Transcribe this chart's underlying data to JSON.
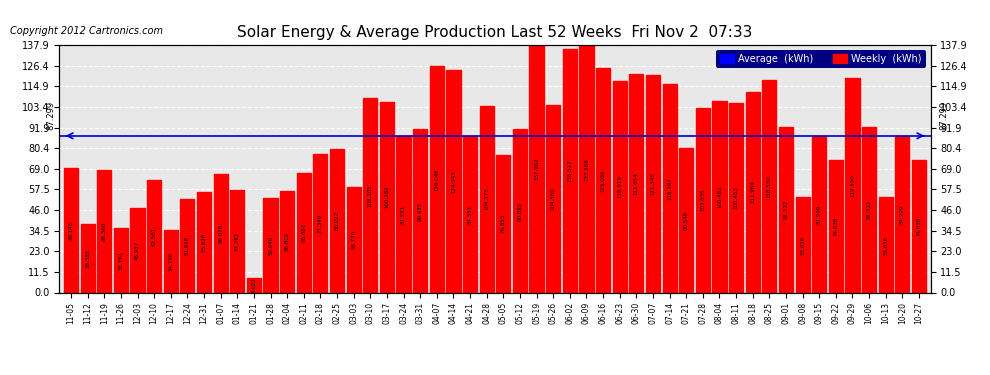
{
  "title": "Solar Energy & Average Production Last 52 Weeks  Fri Nov 2  07:33",
  "copyright": "Copyright 2012 Cartronics.com",
  "average_value": 87.299,
  "bar_color": "#ff0000",
  "average_line_color": "#0000cc",
  "background_color": "#ffffff",
  "plot_bg_color": "#e8e8e8",
  "grid_color": "#ffffff",
  "yticks": [
    0.0,
    11.5,
    23.0,
    34.5,
    46.0,
    57.5,
    69.0,
    80.4,
    91.9,
    103.4,
    114.9,
    126.4,
    137.9
  ],
  "ylim": [
    0.0,
    137.9
  ],
  "categories": [
    "11-05",
    "11-12",
    "11-19",
    "11-26",
    "12-03",
    "12-10",
    "12-17",
    "12-24",
    "12-31",
    "01-07",
    "01-14",
    "01-21",
    "01-28",
    "02-04",
    "02-11",
    "02-18",
    "02-25",
    "03-03",
    "03-10",
    "03-17",
    "03-24",
    "03-31",
    "04-07",
    "04-14",
    "04-21",
    "04-28",
    "05-05",
    "05-12",
    "05-19",
    "05-26",
    "06-02",
    "06-09",
    "06-16",
    "06-23",
    "06-30",
    "07-07",
    "07-14",
    "07-21",
    "07-28",
    "08-04",
    "08-11",
    "08-18",
    "08-25",
    "09-01",
    "09-08",
    "09-15",
    "09-22",
    "09-29",
    "10-06",
    "10-13",
    "10-20",
    "10-27"
  ],
  "values": [
    69.145,
    38.385,
    68.36,
    35.761,
    46.937,
    62.581,
    34.796,
    51.958,
    55.826,
    66.078,
    57.282,
    8.022,
    52.64,
    56.802,
    66.487,
    77.349,
    80.022,
    58.776,
    108.105,
    106.282,
    87.221,
    90.935,
    126.046,
    124.043,
    87.351,
    104.175,
    76.855,
    90.892,
    137.902,
    104.56,
    135.517,
    137.268,
    125.056,
    118.019,
    121.654,
    121.346,
    116.297,
    80.546,
    103.035,
    106.461,
    105.453,
    111.964,
    118.53,
    92.312,
    53.056,
    87.299,
    74.038,
    119.55,
    92.312,
    53.056,
    87.299,
    74.038
  ],
  "legend_avg_color": "#0000ff",
  "legend_weekly_color": "#ff0000",
  "legend_avg_label": "Average  (kWh)",
  "legend_weekly_label": "Weekly  (kWh)"
}
